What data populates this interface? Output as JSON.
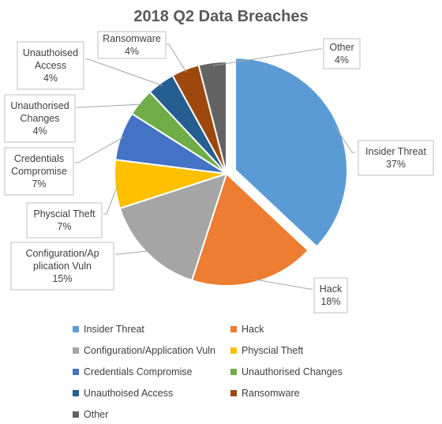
{
  "chart_data": {
    "type": "pie",
    "title": "2018 Q2 Data Breaches",
    "slices": [
      {
        "name": "Insider Threat",
        "value": 37,
        "label": [
          "Insider Threat",
          "37%"
        ],
        "color": "#5b9bd5"
      },
      {
        "name": "Hack",
        "value": 18,
        "label": [
          "Hack",
          "18%"
        ],
        "color": "#ed7d31"
      },
      {
        "name": "Configuration/Application Vuln",
        "value": 15,
        "label": [
          "Configuration/Ap",
          "plication Vuln",
          "15%"
        ],
        "color": "#a5a5a5"
      },
      {
        "name": "Physcial Theft",
        "value": 7,
        "label": [
          "Physcial Theft",
          "7%"
        ],
        "color": "#ffc000"
      },
      {
        "name": "Credentials Compromise",
        "value": 7,
        "label": [
          "Credentials",
          "Compromise",
          "7%"
        ],
        "color": "#4472c4"
      },
      {
        "name": "Unauthorised Changes",
        "value": 4,
        "label": [
          "Unauthorised",
          "Changes",
          "4%"
        ],
        "color": "#70ad47"
      },
      {
        "name": "Unauthoised Access",
        "value": 4,
        "label": [
          "Unauthoised",
          "Access",
          "4%"
        ],
        "color": "#255e91"
      },
      {
        "name": "Ransomware",
        "value": 4,
        "label": [
          "Ransomware",
          "4%"
        ],
        "color": "#9e480e"
      },
      {
        "name": "Other",
        "value": 4,
        "label": [
          "Other",
          "4%"
        ],
        "color": "#636363"
      }
    ],
    "legend_position": "bottom"
  }
}
